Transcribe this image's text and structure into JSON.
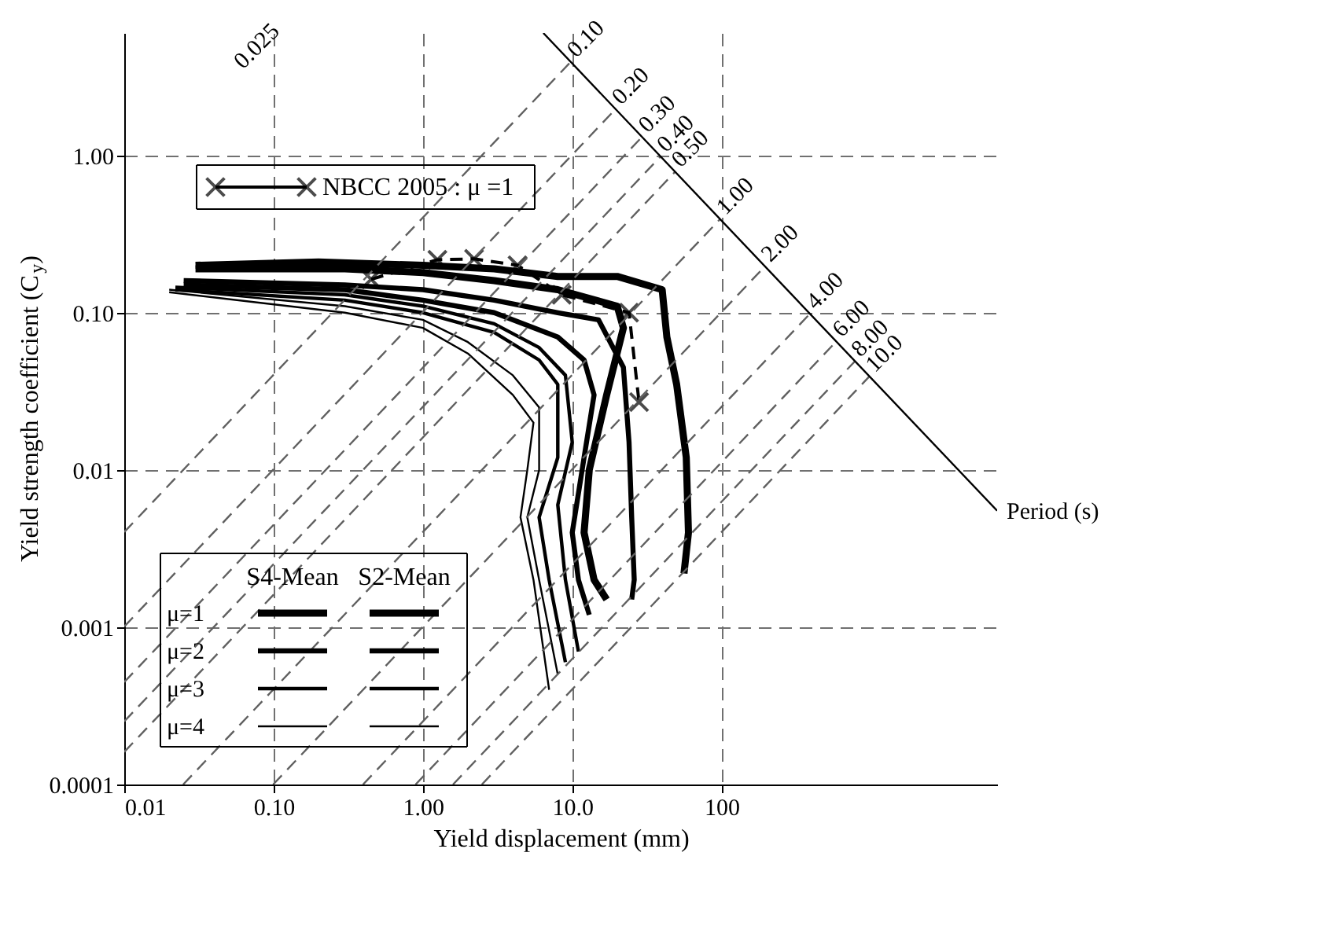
{
  "chart_data": {
    "type": "line",
    "xlabel": "Yield displacement (mm)",
    "ylabel": "Yield strength coefficient (C$_{y}$)",
    "log": "xy",
    "grid": true,
    "legend": "bottom left",
    "xlim": [
      0.01,
      7000
    ],
    "ylim": [
      0.0001,
      6
    ],
    "xticks": [
      0.01,
      {
        "value": 0.1,
        "label": "0.10"
      },
      {
        "value": 1,
        "label": "1.00"
      },
      {
        "value": 10,
        "label": "10.0"
      },
      100
    ],
    "yticks": [
      0.0001,
      0.001,
      0.01,
      {
        "value": 0.1,
        "label": "0.10"
      },
      {
        "value": 1,
        "label": "1.00"
      }
    ],
    "series": [
      {
        "name": "μ=1",
        "color": "#000000",
        "x": [
          0.03,
          0.2,
          1,
          3,
          8,
          20,
          40,
          43,
          50,
          58,
          60,
          56
        ],
        "values": [
          0.2,
          0.21,
          0.2,
          0.19,
          0.17,
          0.17,
          0.14,
          0.07,
          0.035,
          0.012,
          0.004,
          0.0022
        ]
      },
      {
        "name": "μ=2",
        "color": "#000000",
        "x": [
          0.025,
          0.3,
          1,
          3,
          8,
          15,
          22,
          24,
          25,
          26,
          25
        ],
        "values": [
          0.16,
          0.15,
          0.14,
          0.12,
          0.1,
          0.09,
          0.045,
          0.015,
          0.005,
          0.002,
          0.0015
        ]
      },
      {
        "name": "μ=3",
        "color": "#000000",
        "x": [
          0.022,
          0.3,
          1,
          3,
          6,
          9,
          10,
          8,
          9,
          11
        ],
        "values": [
          0.145,
          0.13,
          0.11,
          0.085,
          0.06,
          0.04,
          0.015,
          0.006,
          0.002,
          0.0007
        ]
      },
      {
        "name": "μ=4",
        "color": "#000000",
        "x": [
          0.02,
          0.3,
          1,
          2,
          4,
          6,
          6,
          5,
          6,
          8
        ],
        "values": [
          0.14,
          0.11,
          0.09,
          0.065,
          0.04,
          0.025,
          0.01,
          0.005,
          0.002,
          0.0005
        ]
      },
      {
        "color": "#000000",
        "x": [
          0.03,
          0.3,
          1,
          3,
          8,
          20,
          22,
          17,
          13,
          12,
          14,
          17
        ],
        "values": [
          0.19,
          0.19,
          0.18,
          0.16,
          0.14,
          0.11,
          0.08,
          0.03,
          0.01,
          0.004,
          0.002,
          0.0015
        ]
      },
      {
        "color": "#000000",
        "x": [
          0.025,
          0.3,
          1,
          3,
          8,
          12,
          14,
          12,
          10,
          11,
          13
        ],
        "values": [
          0.15,
          0.14,
          0.12,
          0.1,
          0.07,
          0.05,
          0.03,
          0.012,
          0.004,
          0.002,
          0.0012
        ]
      },
      {
        "color": "#000000",
        "x": [
          0.022,
          0.3,
          1,
          3,
          6,
          8,
          8,
          6,
          7,
          9
        ],
        "values": [
          0.14,
          0.12,
          0.1,
          0.075,
          0.05,
          0.035,
          0.012,
          0.005,
          0.002,
          0.0006
        ]
      },
      {
        "color": "#000000",
        "x": [
          0.02,
          0.3,
          1,
          2,
          4,
          5.5,
          5,
          4.5,
          5.5,
          7
        ],
        "values": [
          0.135,
          0.1,
          0.08,
          0.055,
          0.03,
          0.02,
          0.01,
          0.005,
          0.002,
          0.0004
        ]
      },
      {
        "name": "NBCC 2005 :   μ =1",
        "color": "#000000",
        "marker": "cross",
        "line_style": "dashed",
        "x": [
          0.45,
          1.25,
          2.2,
          4.3,
          8.5,
          24,
          28
        ],
        "values": [
          0.163,
          0.217,
          0.22,
          0.2,
          0.13,
          0.1,
          0.027
        ]
      },
      {
        "color": "#606060",
        "line_style": "dashed",
        "x": [
          0.01,
          9.76
        ],
        "values": [
          0.00403,
          3.93
        ]
      },
      {
        "color": "#606060",
        "line_style": "dashed",
        "x": [
          0.01,
          19.5
        ],
        "values": [
          0.00101,
          1.97
        ]
      },
      {
        "color": "#606060",
        "line_style": "dashed",
        "x": [
          0.01,
          29.3
        ],
        "values": [
          0.000448,
          1.31
        ]
      },
      {
        "color": "#606060",
        "line_style": "dashed",
        "x": [
          0.01,
          39
        ],
        "values": [
          0.000252,
          0.983
        ]
      },
      {
        "color": "#606060",
        "line_style": "dashed",
        "x": [
          0.01,
          48.8
        ],
        "values": [
          0.000161,
          0.786
        ]
      },
      {
        "color": "#606060",
        "line_style": "dashed",
        "x": [
          0.0248,
          97.6
        ],
        "values": [
          0.0001,
          0.393
        ]
      },
      {
        "color": "#606060",
        "line_style": "dashed",
        "x": [
          0.0993,
          195
        ],
        "values": [
          0.0001,
          0.197
        ]
      },
      {
        "color": "#606060",
        "line_style": "dashed",
        "x": [
          0.397,
          390
        ],
        "values": [
          0.0001,
          0.0983
        ]
      },
      {
        "color": "#606060",
        "line_style": "dashed",
        "x": [
          0.893,
          585
        ],
        "values": [
          0.0001,
          0.0655
        ]
      },
      {
        "color": "#606060",
        "line_style": "dashed",
        "x": [
          1.59,
          781
        ],
        "values": [
          0.0001,
          0.0491
        ]
      },
      {
        "color": "#606060",
        "line_style": "dashed",
        "x": [
          2.48,
          976
        ],
        "values": [
          0.0001,
          0.0393
        ]
      },
      {
        "color": "#000000",
        "x": [
          6.4,
          7000
        ],
        "values": [
          6,
          0.0055
        ]
      }
    ],
    "annotations": [
      "S4-Mean",
      "S2-Mean",
      "0.025",
      {
        "text": "0.10",
        "x": 9.76,
        "y": 3.93
      },
      {
        "text": "0.20",
        "x": 19.5,
        "y": 1.97
      },
      {
        "text": "0.30",
        "x": 29.3,
        "y": 1.31
      },
      {
        "text": "0.40",
        "x": 39,
        "y": 0.983
      },
      {
        "text": "0.50",
        "x": 48.8,
        "y": 0.786
      },
      {
        "text": "1.00",
        "x": 97.6,
        "y": 0.393
      },
      {
        "text": "2.00",
        "x": 195,
        "y": 0.197
      },
      {
        "text": "4.00",
        "x": 390,
        "y": 0.0983
      },
      {
        "text": "6.00",
        "x": 585,
        "y": 0.0655
      },
      {
        "text": "8.00",
        "x": 781,
        "y": 0.0491
      },
      {
        "text": "10.0",
        "x": 976,
        "y": 0.0393
      },
      {
        "text": "Period (s)",
        "x": 7000,
        "y": 0.0055
      }
    ]
  }
}
